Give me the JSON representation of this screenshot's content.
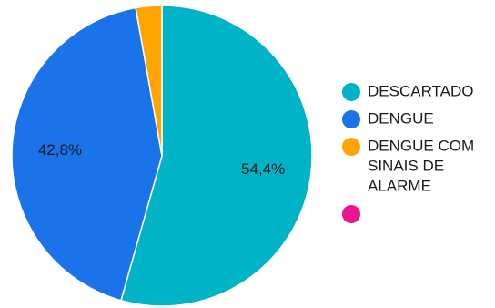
{
  "chart_data": {
    "type": "pie",
    "title": "",
    "slices": [
      {
        "label": "DESCARTADO",
        "value": 54.4,
        "display": "54,4%",
        "color": "#00B3C7"
      },
      {
        "label": "DENGUE",
        "value": 42.8,
        "display": "42,8%",
        "color": "#1A73E8"
      },
      {
        "label": "DENGUE COM SINAIS DE ALARME",
        "value": 2.8,
        "display": "",
        "color": "#FFA400"
      },
      {
        "label": "",
        "value": 0,
        "display": "",
        "color": "#E8168F"
      }
    ],
    "legend_position": "right"
  }
}
